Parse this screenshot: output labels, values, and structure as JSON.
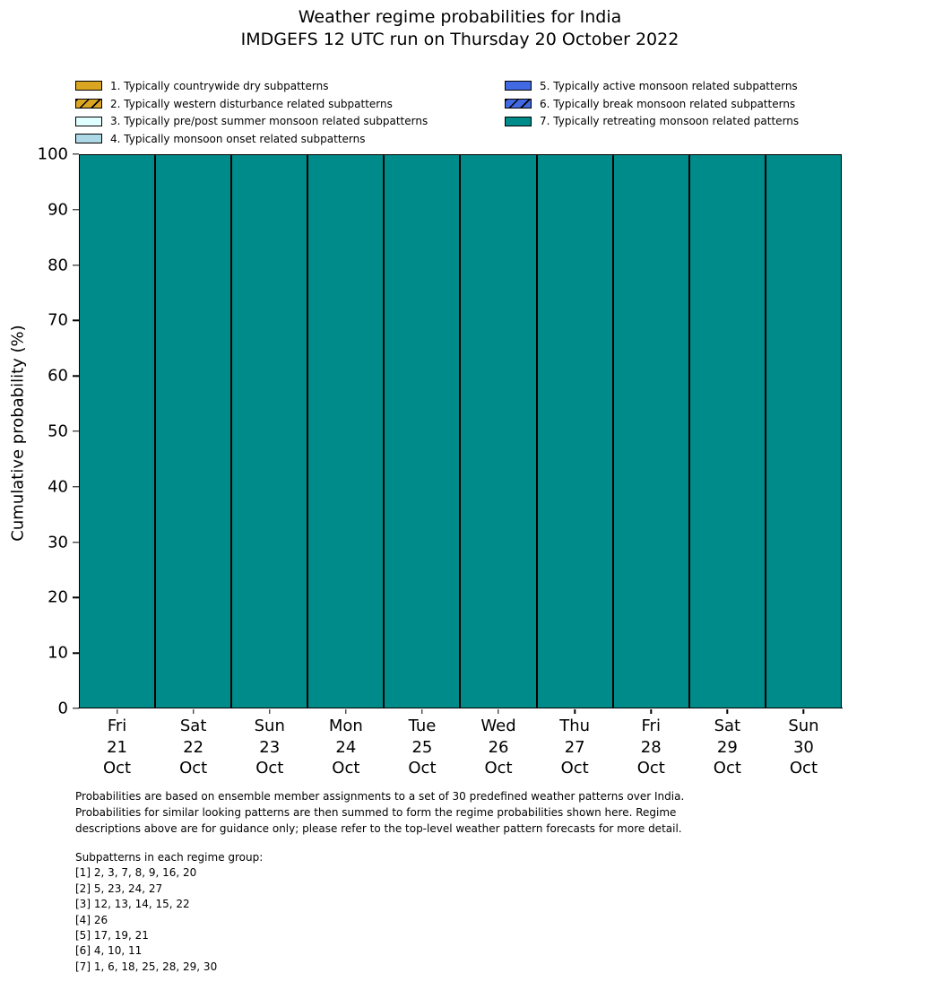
{
  "title": "Weather regime probabilities for India",
  "subtitle": "IMDGEFS 12 UTC run on Thursday 20 October 2022",
  "chart_data": {
    "type": "bar",
    "stacked": true,
    "title": "Weather regime probabilities for India",
    "subtitle": "IMDGEFS 12 UTC run on Thursday 20 October 2022",
    "ylabel": "Cumulative probability (%)",
    "xlabel": "",
    "ylim": [
      0,
      100
    ],
    "yticks": [
      0,
      10,
      20,
      30,
      40,
      50,
      60,
      70,
      80,
      90,
      100
    ],
    "grid": false,
    "legend_position": "top",
    "bar_edge_color": "#000000",
    "categories": [
      {
        "day": "Fri",
        "date": "21",
        "month": "Oct"
      },
      {
        "day": "Sat",
        "date": "22",
        "month": "Oct"
      },
      {
        "day": "Sun",
        "date": "23",
        "month": "Oct"
      },
      {
        "day": "Mon",
        "date": "24",
        "month": "Oct"
      },
      {
        "day": "Tue",
        "date": "25",
        "month": "Oct"
      },
      {
        "day": "Wed",
        "date": "26",
        "month": "Oct"
      },
      {
        "day": "Thu",
        "date": "27",
        "month": "Oct"
      },
      {
        "day": "Fri",
        "date": "28",
        "month": "Oct"
      },
      {
        "day": "Sat",
        "date": "29",
        "month": "Oct"
      },
      {
        "day": "Sun",
        "date": "30",
        "month": "Oct"
      }
    ],
    "series": [
      {
        "name": "1. Typically countrywide dry subpatterns",
        "color": "#DAA520",
        "hatch": false,
        "values": [
          0,
          0,
          0,
          0,
          0,
          0,
          0,
          0,
          0,
          0
        ]
      },
      {
        "name": "2. Typically western disturbance related subpatterns",
        "color": "#DAA520",
        "hatch": true,
        "values": [
          0,
          0,
          0,
          0,
          0,
          0,
          0,
          0,
          0,
          0
        ]
      },
      {
        "name": "3. Typically pre/post summer monsoon related subpatterns",
        "color": "#E0FFFF",
        "hatch": false,
        "values": [
          0,
          0,
          0,
          0,
          0,
          0,
          0,
          0,
          0,
          0
        ]
      },
      {
        "name": "4. Typically monsoon onset related subpatterns",
        "color": "#ADD8E6",
        "hatch": false,
        "values": [
          0,
          0,
          0,
          0,
          0,
          0,
          0,
          0,
          0,
          0
        ]
      },
      {
        "name": "5. Typically active monsoon related subpatterns",
        "color": "#4169E1",
        "hatch": false,
        "values": [
          0,
          0,
          0,
          0,
          0,
          0,
          0,
          0,
          0,
          0
        ]
      },
      {
        "name": "6. Typically break monsoon related subpatterns",
        "color": "#4169E1",
        "hatch": true,
        "values": [
          0,
          0,
          0,
          0,
          0,
          0,
          0,
          0,
          0,
          0
        ]
      },
      {
        "name": "7. Typically retreating monsoon related patterns",
        "color": "#008B8B",
        "hatch": false,
        "values": [
          100,
          100,
          100,
          100,
          100,
          100,
          100,
          100,
          100,
          100
        ]
      }
    ]
  },
  "legend": {
    "columns": [
      [
        0,
        1,
        2,
        3
      ],
      [
        4,
        5,
        6
      ]
    ]
  },
  "footnote_lines": [
    "Probabilities are based on ensemble member assignments to a set of 30 predefined weather patterns over India.",
    "Probabilities for similar looking patterns are then summed to form the regime probabilities shown here. Regime",
    "descriptions above are for guidance only; please refer to the top-level weather pattern forecasts for more detail."
  ],
  "subpatterns": {
    "heading": "Subpatterns in each regime group:",
    "lines": [
      "[1] 2, 3, 7, 8, 9, 16, 20",
      "[2] 5, 23, 24, 27",
      "[3] 12, 13, 14, 15, 22",
      "[4] 26",
      "[5] 17, 19, 21",
      "[6] 4, 10, 11",
      "[7] 1, 6, 18, 25, 28, 29, 30"
    ]
  }
}
